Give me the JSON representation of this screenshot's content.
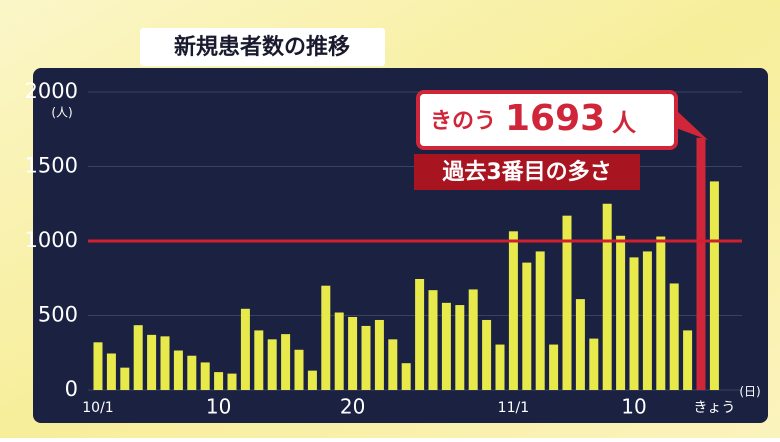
{
  "chart_data": {
    "type": "bar",
    "title": "新規患者数の推移",
    "categories": [
      "10/1",
      null,
      null,
      null,
      null,
      null,
      null,
      null,
      null,
      "10",
      null,
      null,
      null,
      null,
      null,
      null,
      null,
      null,
      null,
      "20",
      null,
      null,
      null,
      null,
      null,
      null,
      null,
      null,
      null,
      null,
      null,
      "11/1",
      null,
      null,
      null,
      null,
      null,
      null,
      null,
      null,
      "10",
      null,
      null,
      null,
      null,
      null,
      "きょう"
    ],
    "values": [
      320,
      245,
      150,
      435,
      370,
      360,
      265,
      230,
      185,
      120,
      110,
      545,
      400,
      340,
      375,
      270,
      130,
      700,
      520,
      490,
      430,
      470,
      340,
      180,
      745,
      670,
      585,
      570,
      675,
      470,
      305,
      1065,
      855,
      930,
      305,
      1170,
      610,
      345,
      1250,
      1035,
      890,
      930,
      1030,
      715,
      400,
      1693,
      1400
    ],
    "colors": [
      "#e8ea4c",
      "#e8ea4c",
      "#e8ea4c",
      "#e8ea4c",
      "#e8ea4c",
      "#e8ea4c",
      "#e8ea4c",
      "#e8ea4c",
      "#e8ea4c",
      "#e8ea4c",
      "#e8ea4c",
      "#e8ea4c",
      "#e8ea4c",
      "#e8ea4c",
      "#e8ea4c",
      "#e8ea4c",
      "#e8ea4c",
      "#e8ea4c",
      "#e8ea4c",
      "#e8ea4c",
      "#e8ea4c",
      "#e8ea4c",
      "#e8ea4c",
      "#e8ea4c",
      "#e8ea4c",
      "#e8ea4c",
      "#e8ea4c",
      "#e8ea4c",
      "#e8ea4c",
      "#e8ea4c",
      "#e8ea4c",
      "#e8ea4c",
      "#e8ea4c",
      "#e8ea4c",
      "#e8ea4c",
      "#e8ea4c",
      "#e8ea4c",
      "#e8ea4c",
      "#e8ea4c",
      "#e8ea4c",
      "#e8ea4c",
      "#e8ea4c",
      "#e8ea4c",
      "#e8ea4c",
      "#e8ea4c",
      "#d0263a",
      "#e8ea4c"
    ],
    "ylim": [
      0,
      2000
    ],
    "yticks": [
      0,
      500,
      1000,
      1500,
      2000
    ],
    "grid": true,
    "y_unit": "(人)",
    "x_unit": "(日)",
    "reference_line": {
      "value": 1000,
      "color": "#d01f2e"
    },
    "annotation": {
      "prefix": "きのう",
      "suffix": "人",
      "note": "過去3番目の多さ"
    }
  }
}
